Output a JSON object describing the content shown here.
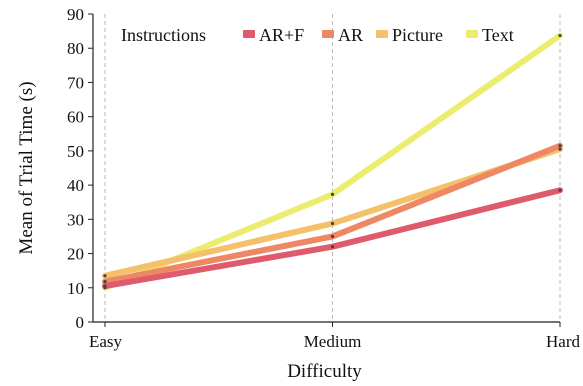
{
  "chart_data": {
    "type": "line",
    "xlabel": "Difficulty",
    "ylabel": "Mean of Trial Time (s)",
    "categories": [
      "Easy",
      "Medium",
      "Hard"
    ],
    "ylim": [
      0,
      90
    ],
    "yticks": [
      0,
      10,
      20,
      30,
      40,
      50,
      60,
      70,
      80,
      90
    ],
    "grid": "vertical dashed at categories",
    "legend": {
      "title": "Instructions",
      "placement": "top"
    },
    "series": [
      {
        "name": "AR+F",
        "color": "#e05a6e",
        "values": [
          10.5,
          22,
          38.5
        ]
      },
      {
        "name": "AR",
        "color": "#ee8864",
        "values": [
          11.8,
          25,
          51.5
        ]
      },
      {
        "name": "Picture",
        "color": "#f4c06a",
        "values": [
          13.5,
          28.8,
          50.5
        ]
      },
      {
        "name": "Text",
        "color": "#ecec6e",
        "values": [
          10,
          37.3,
          83.7
        ]
      }
    ]
  }
}
